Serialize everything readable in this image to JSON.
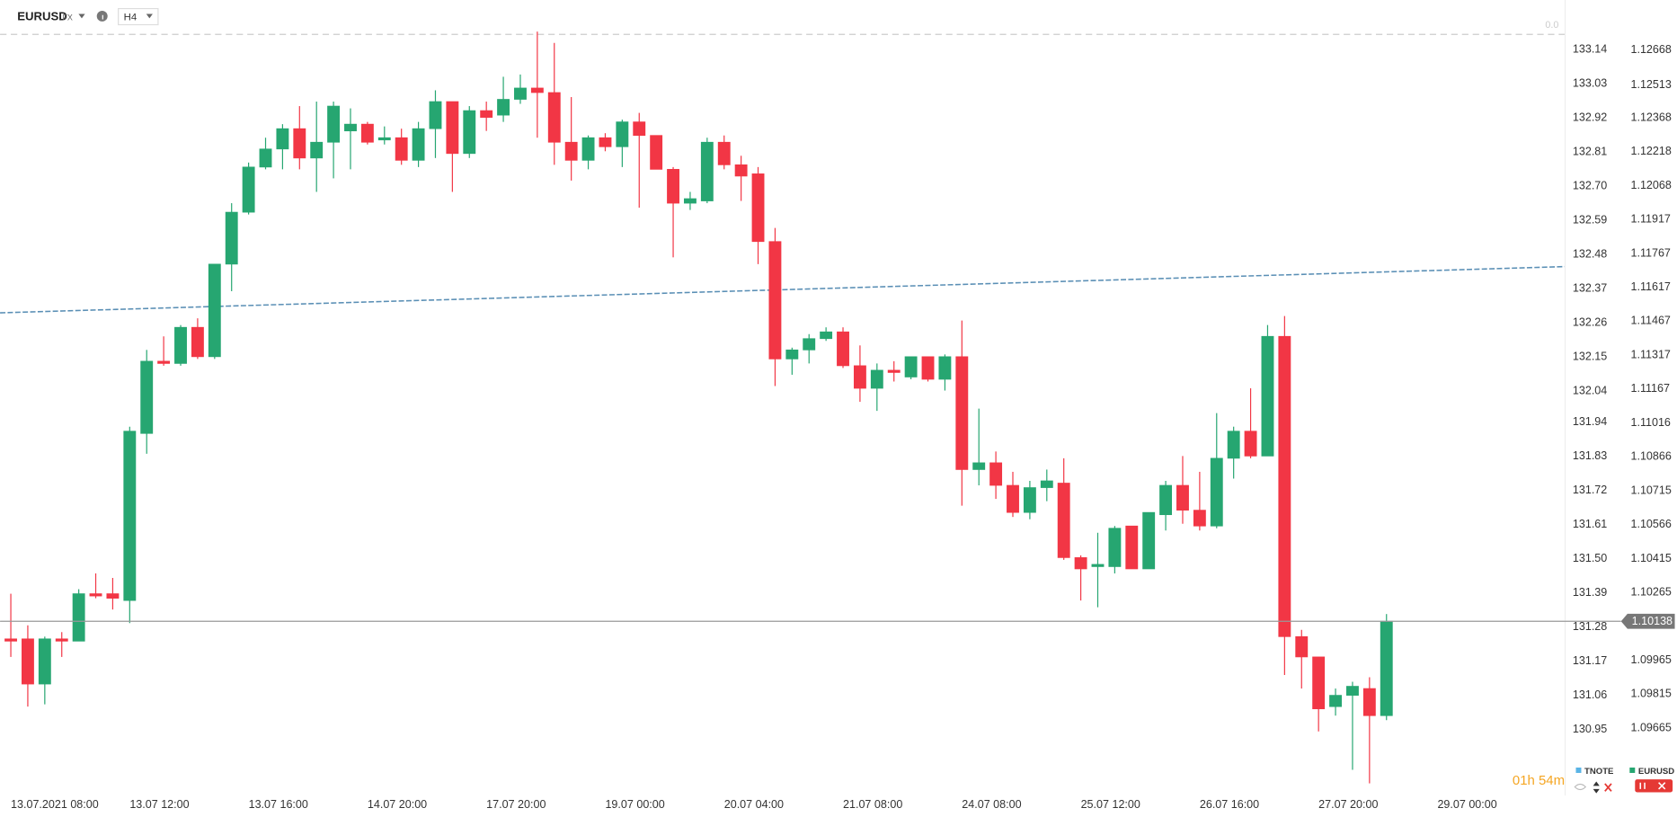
{
  "header": {
    "symbol": "EURUSD",
    "market": "FX",
    "interval": "H4"
  },
  "countdown": "01h 54m",
  "scale_marker": "0.0",
  "legend": [
    {
      "name": "TNOTE",
      "color": "#5ab4e6"
    },
    {
      "name": "EURUSD",
      "color": "#26a671"
    }
  ],
  "chart_data": {
    "type": "candlestick",
    "categories": [
      "13.07.2021 08:00",
      null,
      null,
      null,
      null,
      null,
      null,
      "13.07 12:00",
      null,
      null,
      null,
      null,
      null,
      null,
      "13.07 16:00",
      null,
      null,
      null,
      null,
      null,
      null,
      "14.07 20:00",
      null,
      null,
      null,
      null,
      null,
      null,
      "17.07 20:00",
      null,
      null,
      null,
      null,
      null,
      null,
      "19.07 00:00",
      null,
      null,
      null,
      null,
      null,
      null,
      "20.07 04:00",
      null,
      null,
      null,
      null,
      null,
      null,
      "21.07 08:00",
      null,
      null,
      null,
      null,
      null,
      null,
      "24.07 08:00",
      null,
      null,
      null,
      null,
      null,
      null,
      "25.07 12:00",
      null,
      null,
      null,
      null,
      null,
      null,
      "26.07 16:00",
      null,
      null,
      null,
      null,
      null,
      null,
      "27.07 20:00",
      null,
      null,
      null,
      null,
      null,
      null,
      "29.07 00:00"
    ],
    "series": [
      {
        "name": "EURUSD",
        "color_up": "#26a671",
        "color_down": "#f23645",
        "open": [
          1.1006,
          1.1006,
          1.0986,
          1.1006,
          1.1005,
          1.1026,
          1.1026,
          1.1023,
          1.1097,
          1.1129,
          1.1128,
          1.1144,
          1.1131,
          1.1172,
          1.1195,
          1.1215,
          1.1223,
          1.1232,
          1.1219,
          1.1226,
          1.1231,
          1.1234,
          1.1227,
          1.1228,
          1.1218,
          1.1232,
          1.1244,
          1.1221,
          1.124,
          1.1238,
          1.1245,
          1.125,
          1.1248,
          1.1226,
          1.1218,
          1.1228,
          1.1224,
          1.1235,
          1.1229,
          1.1214,
          1.1199,
          1.12,
          1.1226,
          1.1216,
          1.1212,
          1.1182,
          1.113,
          1.1134,
          1.1139,
          1.1142,
          1.1127,
          1.1117,
          1.1125,
          1.1122,
          1.1131,
          1.1121,
          1.1131,
          1.1081,
          1.1084,
          1.1074,
          1.1062,
          1.1073,
          1.1075,
          1.1042,
          1.1038,
          1.1038,
          1.1056,
          1.1037,
          1.1061,
          1.1074,
          1.1063,
          1.1056,
          1.1086,
          1.1098,
          1.1087,
          1.114,
          1.1007,
          1.0998,
          1.0976,
          1.0981,
          1.0984,
          1.0972,
          null,
          null,
          null
        ],
        "high": [
          1.1026,
          1.1012,
          1.1007,
          1.1009,
          1.1028,
          1.1035,
          1.1033,
          1.11,
          1.1134,
          1.114,
          1.1145,
          1.1148,
          1.1172,
          1.1199,
          1.1217,
          1.1228,
          1.1234,
          1.1242,
          1.1244,
          1.1244,
          1.1241,
          1.1235,
          1.1233,
          1.1232,
          1.1235,
          1.1249,
          1.1244,
          1.1242,
          1.1244,
          1.1255,
          1.1256,
          1.1275,
          1.127,
          1.1246,
          1.1229,
          1.123,
          1.1236,
          1.1239,
          1.1229,
          1.1215,
          1.1204,
          1.1228,
          1.1229,
          1.122,
          1.1215,
          1.1188,
          1.1135,
          1.1141,
          1.1144,
          1.1144,
          1.1136,
          1.1128,
          1.1129,
          1.1131,
          1.1131,
          1.1132,
          1.1147,
          1.1108,
          1.1089,
          1.108,
          1.1076,
          1.1081,
          1.1086,
          1.1043,
          1.1053,
          1.1056,
          1.1056,
          1.1062,
          1.1076,
          1.1087,
          1.108,
          1.1106,
          1.11,
          1.1117,
          1.1145,
          1.1149,
          1.101,
          1.0998,
          1.0984,
          1.0987,
          1.0989,
          1.1017,
          null,
          null,
          null
        ],
        "low": [
          1.0998,
          1.0976,
          1.0977,
          1.0998,
          1.1005,
          1.1024,
          1.1019,
          1.1013,
          1.1088,
          1.1127,
          1.1127,
          1.113,
          1.113,
          1.116,
          1.1194,
          1.1214,
          1.1214,
          1.1214,
          1.1204,
          1.121,
          1.1214,
          1.1225,
          1.1225,
          1.1216,
          1.1215,
          1.1219,
          1.1204,
          1.1219,
          1.1231,
          1.1235,
          1.1243,
          1.1228,
          1.1216,
          1.1209,
          1.1214,
          1.1222,
          1.1215,
          1.1197,
          1.1214,
          1.1175,
          1.1196,
          1.1199,
          1.1214,
          1.12,
          1.1172,
          1.1118,
          1.1123,
          1.1128,
          1.1138,
          1.1126,
          1.1111,
          1.1107,
          1.112,
          1.1121,
          1.112,
          1.1116,
          1.1065,
          1.1074,
          1.1068,
          1.106,
          1.1059,
          1.1067,
          1.1041,
          1.1023,
          1.102,
          1.1035,
          1.1037,
          1.1037,
          1.1054,
          1.1057,
          1.1054,
          1.1055,
          1.1077,
          1.1086,
          1.1087,
          1.099,
          1.0984,
          1.0965,
          1.0972,
          1.0948,
          1.0942,
          1.097,
          null,
          null,
          null
        ],
        "close": [
          1.1005,
          1.0986,
          1.1006,
          1.1005,
          1.1026,
          1.1025,
          1.1024,
          1.1098,
          1.1129,
          1.1128,
          1.1144,
          1.1131,
          1.1172,
          1.1195,
          1.1215,
          1.1223,
          1.1232,
          1.1219,
          1.1226,
          1.1242,
          1.1234,
          1.1226,
          1.1228,
          1.1218,
          1.1232,
          1.1244,
          1.1221,
          1.124,
          1.1237,
          1.1245,
          1.125,
          1.1248,
          1.1226,
          1.1218,
          1.1228,
          1.1224,
          1.1235,
          1.1229,
          1.1214,
          1.1199,
          1.1201,
          1.1226,
          1.1216,
          1.1211,
          1.1182,
          1.113,
          1.1134,
          1.1139,
          1.1142,
          1.1127,
          1.1117,
          1.1125,
          1.1124,
          1.1131,
          1.1121,
          1.1131,
          1.1081,
          1.1084,
          1.1074,
          1.1062,
          1.1073,
          1.1076,
          1.1042,
          1.1037,
          1.1039,
          1.1055,
          1.1037,
          1.1062,
          1.1074,
          1.1063,
          1.1056,
          1.1086,
          1.1098,
          1.1087,
          1.114,
          1.1007,
          1.0998,
          1.0975,
          1.0981,
          1.0985,
          1.0972,
          1.10138,
          null,
          null,
          null
        ]
      }
    ],
    "ylim": [
      1.0939,
      1.1289
    ],
    "yticks": [
      1.12668,
      1.12513,
      1.12368,
      1.12218,
      1.12068,
      1.11917,
      1.11767,
      1.11617,
      1.11467,
      1.11317,
      1.11167,
      1.11016,
      1.10866,
      1.10715,
      1.10566,
      1.10415,
      1.10265,
      1.09965,
      1.09815,
      1.09665
    ],
    "y2lim": [
      130.755,
      133.3
    ],
    "y2ticks": [
      133.14,
      133.03,
      132.92,
      132.81,
      {
        "value": 132.7,
        "label": "132.70"
      },
      132.59,
      132.48,
      132.37,
      132.26,
      132.15,
      132.04,
      131.94,
      131.83,
      131.72,
      131.61,
      {
        "value": 131.5,
        "label": "131.50"
      },
      131.39,
      131.28,
      131.17,
      131.06,
      130.95
    ],
    "grid": false
  }
}
